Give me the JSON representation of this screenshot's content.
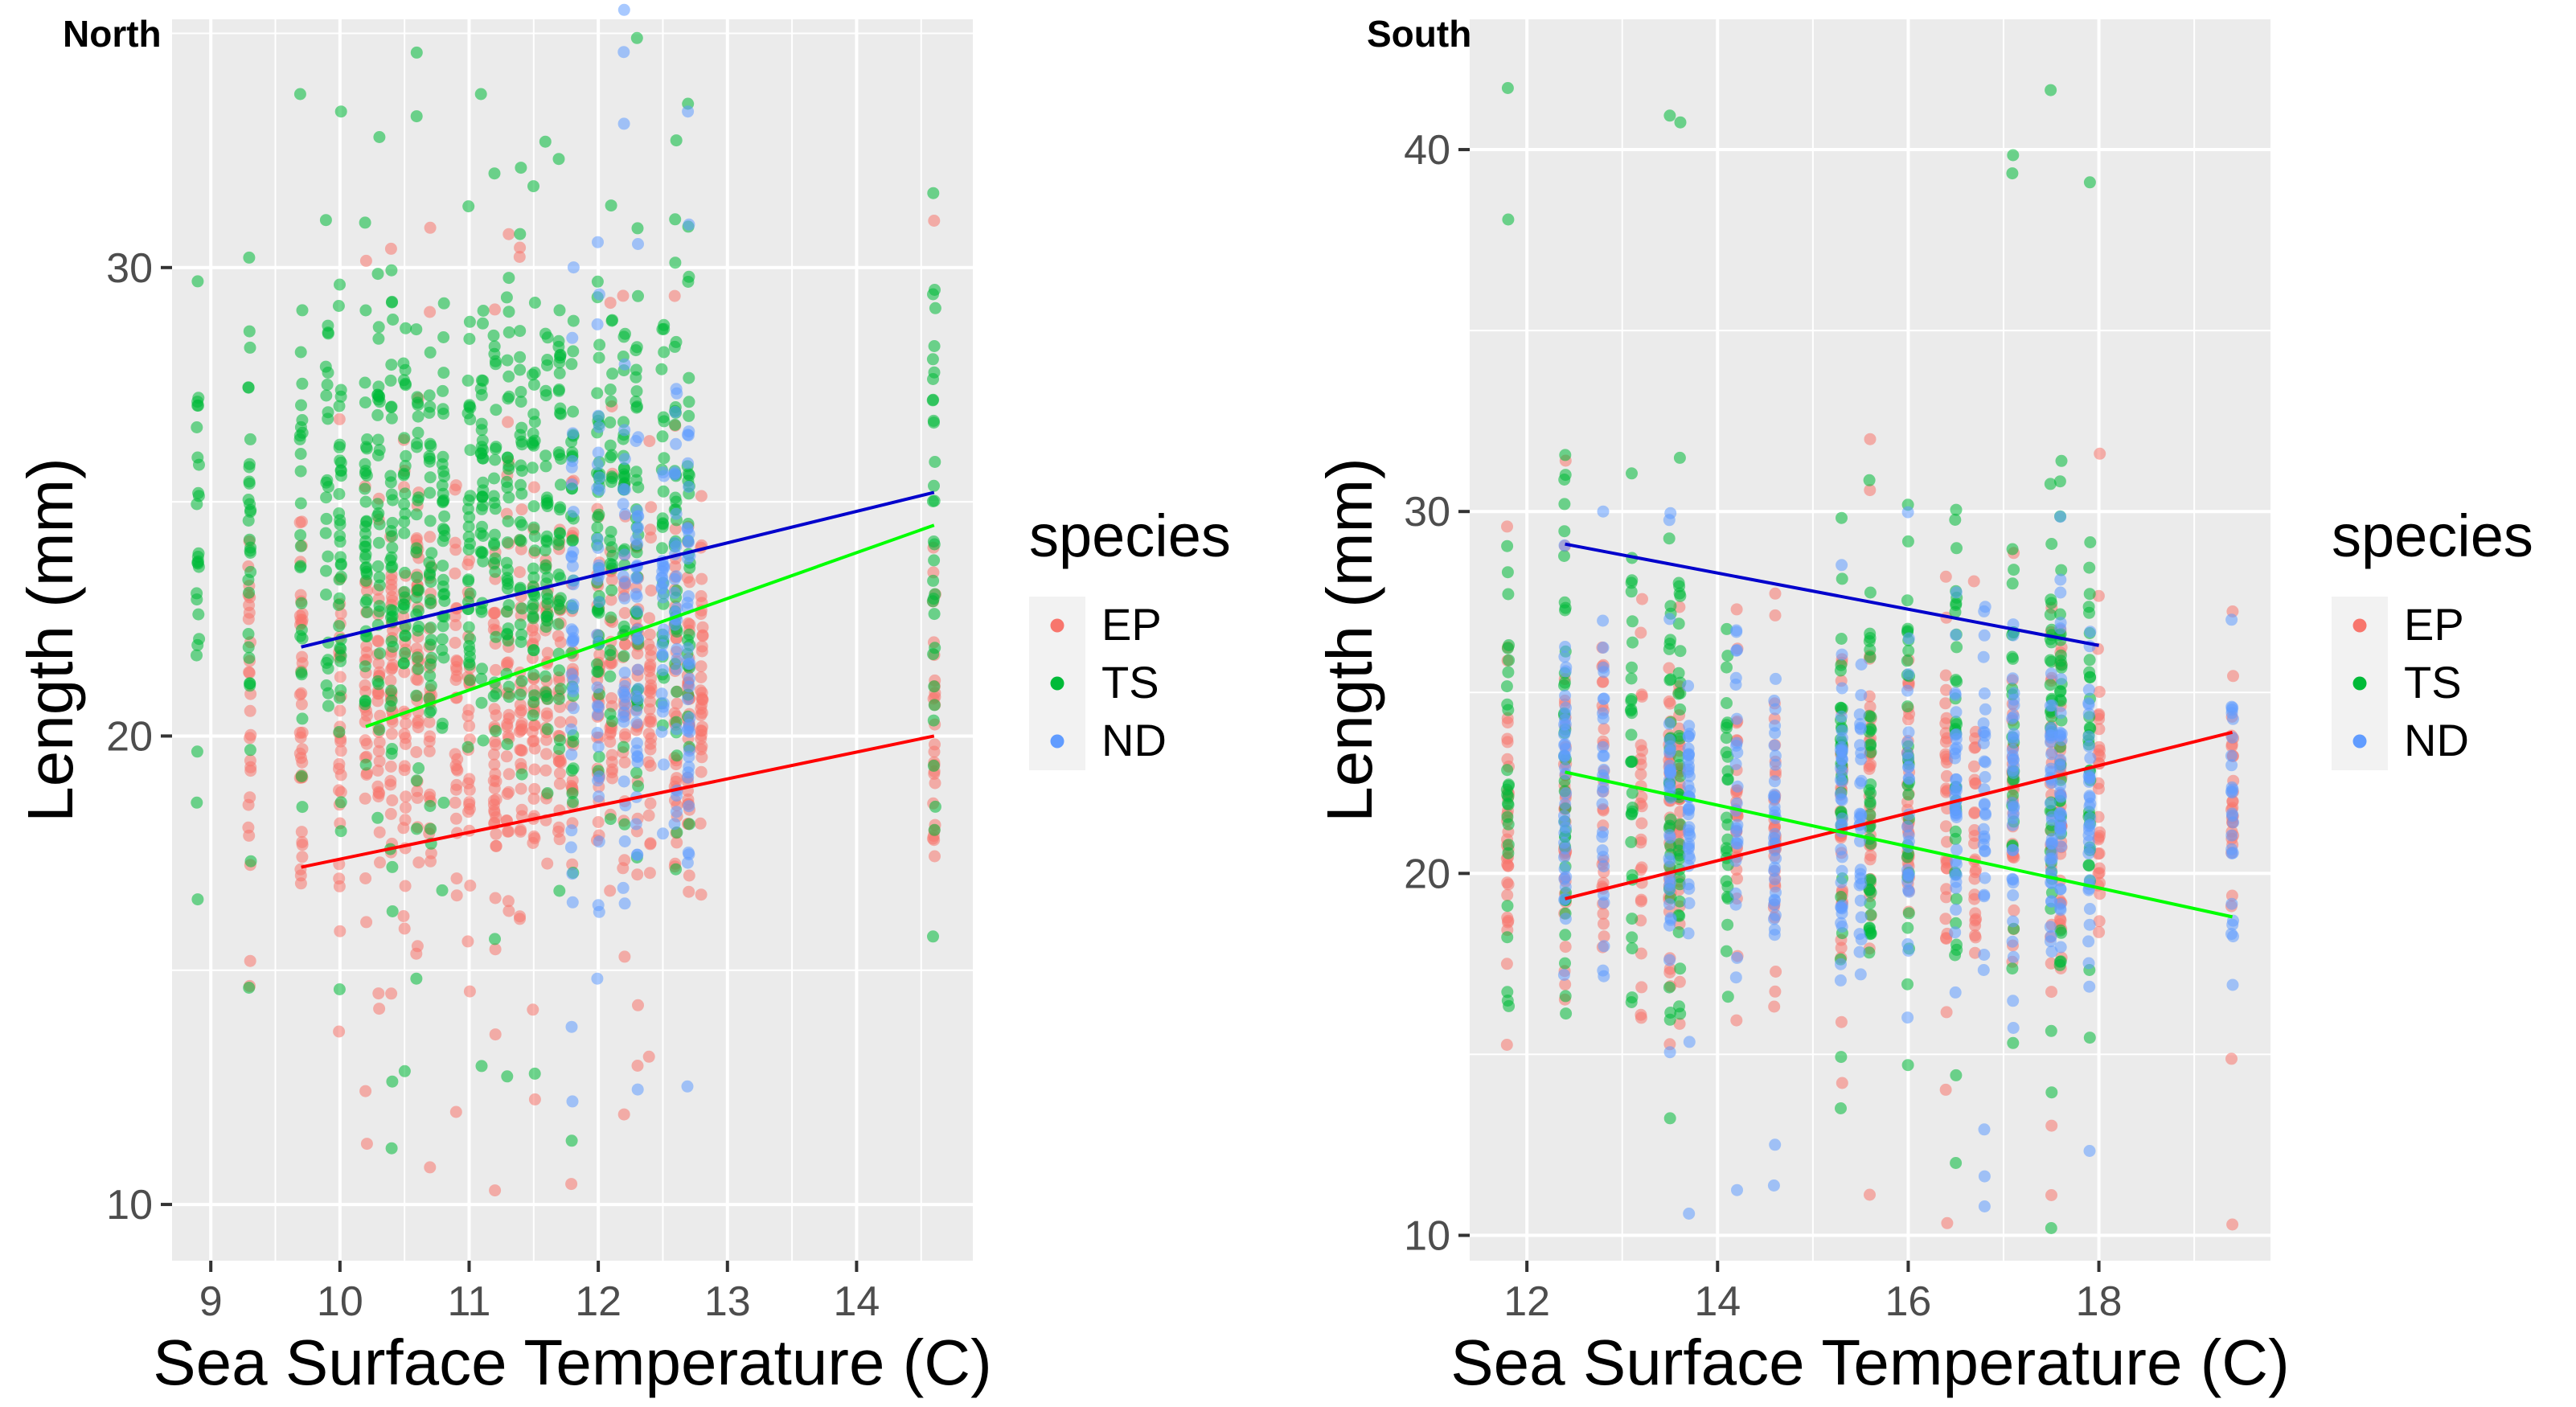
{
  "figure": {
    "legend_title": "species",
    "colors": {
      "EP": "#F8766D",
      "TS": "#00BA38",
      "ND": "#619CFF"
    },
    "fit_colors": {
      "EP": "#FF0000",
      "TS": "#00FF00",
      "ND": "#0000CC"
    }
  },
  "chart_data": [
    {
      "type": "scatter",
      "title": "North",
      "xlabel": "Sea Surface Temperature (C)",
      "ylabel": "Length (mm)",
      "xlim": [
        8.7,
        14.9
      ],
      "ylim": [
        8.8,
        35.3
      ],
      "xticks": [
        9,
        10,
        11,
        12,
        13,
        14
      ],
      "yticks": [
        10,
        20,
        30
      ],
      "grid": true,
      "legend": {
        "title": "species",
        "position": "right",
        "entries": [
          "EP",
          "TS",
          "ND"
        ]
      },
      "series": [
        {
          "name": "EP",
          "color": "#F8766D",
          "temperature_columns": [
            9.3,
            9.7,
            10.0,
            10.2,
            10.3,
            10.4,
            10.5,
            10.6,
            10.7,
            10.9,
            11.0,
            11.2,
            11.3,
            11.4,
            11.5,
            11.6,
            11.7,
            11.8,
            12.0,
            12.1,
            12.2,
            12.3,
            12.4,
            12.6,
            12.7,
            12.8,
            14.6
          ],
          "length_range": [
            10.3,
            31.0
          ],
          "typical_range": [
            15.0,
            26.0
          ],
          "fit_line": {
            "x": [
              9.7,
              14.6
            ],
            "y": [
              17.2,
              20.0
            ]
          }
        },
        {
          "name": "TS",
          "color": "#00BA38",
          "temperature_columns": [
            8.9,
            9.3,
            9.7,
            9.9,
            10.0,
            10.2,
            10.3,
            10.4,
            10.5,
            10.6,
            10.7,
            10.8,
            11.0,
            11.1,
            11.2,
            11.3,
            11.4,
            11.5,
            11.6,
            11.7,
            11.8,
            12.0,
            12.1,
            12.2,
            12.3,
            12.5,
            12.6,
            12.7,
            14.6
          ],
          "length_range": [
            11.2,
            34.9
          ],
          "typical_range": [
            17.0,
            32.0
          ],
          "fit_line": {
            "x": [
              10.2,
              14.6
            ],
            "y": [
              20.2,
              24.5
            ]
          }
        },
        {
          "name": "ND",
          "color": "#619CFF",
          "temperature_columns": [
            11.8,
            12.0,
            12.2,
            12.3,
            12.5,
            12.6,
            12.7
          ],
          "length_range": [
            12.2,
            35.5
          ],
          "typical_range": [
            15.5,
            29.0
          ],
          "fit_line": {
            "x": [
              9.7,
              14.6
            ],
            "y": [
              21.9,
              25.2
            ]
          }
        }
      ]
    },
    {
      "type": "scatter",
      "title": "South",
      "xlabel": "Sea Surface Temperature (C)",
      "ylabel": "Length (mm)",
      "xlim": [
        11.4,
        19.8
      ],
      "ylim": [
        9.3,
        43.6
      ],
      "xticks": [
        12,
        14,
        16,
        18
      ],
      "yticks": [
        10,
        20,
        30,
        40
      ],
      "grid": true,
      "legend": {
        "title": "species",
        "position": "right",
        "entries": [
          "EP",
          "TS",
          "ND"
        ]
      },
      "series": [
        {
          "name": "EP",
          "color": "#F8766D",
          "temperature_columns": [
            11.8,
            12.4,
            12.8,
            13.2,
            13.5,
            13.6,
            14.2,
            14.6,
            15.3,
            15.6,
            16.0,
            16.4,
            16.7,
            17.1,
            17.5,
            17.6,
            18.0,
            19.4
          ],
          "length_range": [
            10.3,
            32.0
          ],
          "typical_range": [
            15.5,
            28.0
          ],
          "fit_line": {
            "x": [
              12.4,
              19.4
            ],
            "y": [
              19.3,
              23.9
            ]
          }
        },
        {
          "name": "TS",
          "color": "#00BA38",
          "temperature_columns": [
            11.8,
            12.4,
            13.1,
            13.5,
            13.6,
            14.1,
            15.3,
            15.6,
            16.0,
            16.5,
            17.1,
            17.5,
            17.6,
            17.9
          ],
          "length_range": [
            10.2,
            41.7
          ],
          "typical_range": [
            13.5,
            33.0
          ],
          "fit_line": {
            "x": [
              12.4,
              19.4
            ],
            "y": [
              22.8,
              18.8
            ]
          }
        },
        {
          "name": "ND",
          "color": "#619CFF",
          "temperature_columns": [
            12.4,
            12.8,
            13.5,
            13.7,
            14.2,
            14.6,
            15.3,
            15.5,
            16.0,
            16.5,
            16.8,
            17.1,
            17.5,
            17.6,
            17.9,
            19.4
          ],
          "length_range": [
            10.6,
            30.0
          ],
          "typical_range": [
            15.5,
            28.5
          ],
          "fit_line": {
            "x": [
              12.4,
              18.0
            ],
            "y": [
              29.1,
              26.3
            ]
          }
        }
      ]
    }
  ]
}
